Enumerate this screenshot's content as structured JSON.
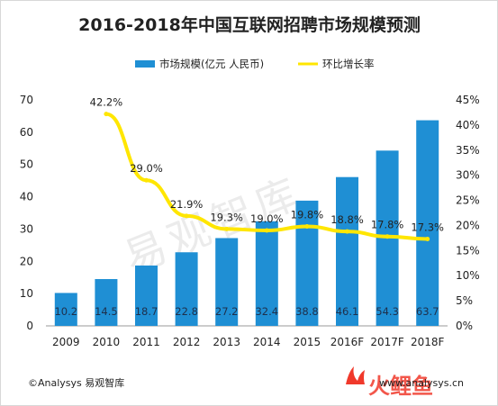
{
  "chart_data": {
    "type": "bar+line",
    "title": "2016-2018年中国互联网招聘市场规模预测",
    "categories": [
      "2009",
      "2010",
      "2011",
      "2012",
      "2013",
      "2014",
      "2015",
      "2016F",
      "2017F",
      "2018F"
    ],
    "series": [
      {
        "name": "市场规模(亿元 人民币)",
        "type": "bar",
        "axis": "left",
        "values": [
          10.2,
          14.5,
          18.7,
          22.8,
          27.2,
          32.4,
          38.8,
          46.1,
          54.3,
          63.7
        ],
        "labels": [
          "10.2",
          "14.5",
          "18.7",
          "22.8",
          "27.2",
          "32.4",
          "38.8",
          "46.1",
          "54.3",
          "63.7"
        ]
      },
      {
        "name": "环比增长率",
        "type": "line",
        "axis": "right",
        "values": [
          null,
          42.2,
          29.0,
          21.9,
          19.3,
          19.0,
          19.8,
          18.8,
          17.8,
          17.3
        ],
        "labels": [
          "",
          "42.2%",
          "29.0%",
          "21.9%",
          "19.3%",
          "19.0%",
          "19.8%",
          "18.8%",
          "17.8%",
          "17.3%"
        ]
      }
    ],
    "left_axis": {
      "ylim": [
        0,
        70
      ],
      "ticks": [
        "0",
        "10",
        "20",
        "30",
        "40",
        "50",
        "60",
        "70"
      ]
    },
    "right_axis": {
      "ylim": [
        0,
        45
      ],
      "ticks": [
        "0%",
        "5%",
        "10%",
        "15%",
        "20%",
        "25%",
        "30%",
        "35%",
        "40%",
        "45%"
      ]
    },
    "legend_position": "top-right",
    "grid": false
  },
  "colors": {
    "bar": "#1f8fd4",
    "line": "#ffe600"
  },
  "watermark": "易观智库",
  "footer": {
    "source": "©Analysys 易观智库",
    "logo_text": "火鲤鱼",
    "url": "www.analysys.cn"
  }
}
